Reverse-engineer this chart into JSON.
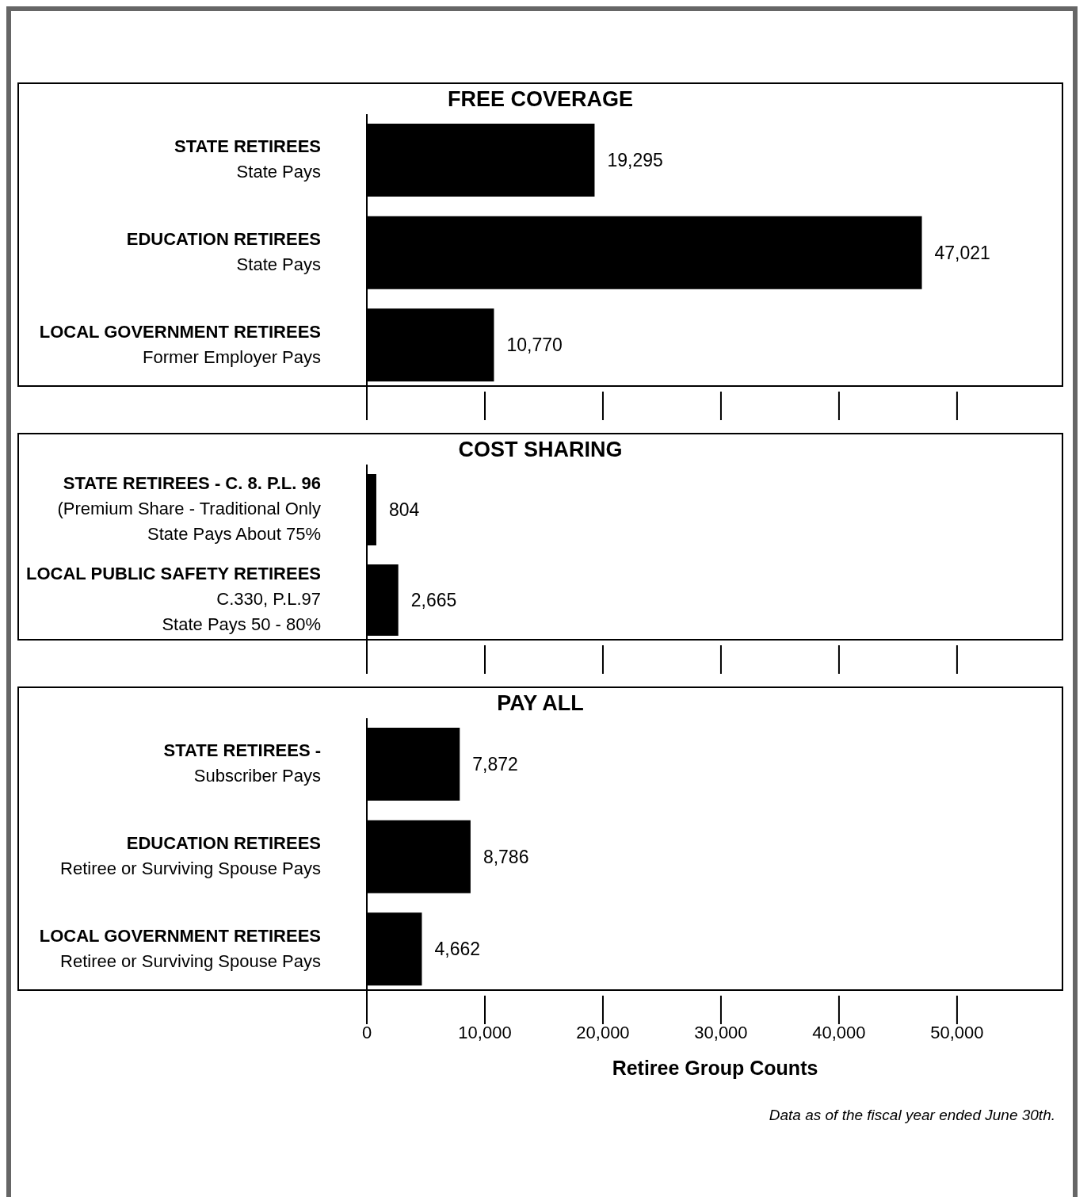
{
  "chart_data": [
    {
      "type": "bar",
      "orientation": "horizontal",
      "title": "FREE COVERAGE",
      "categories": [
        "STATE RETIREES\nState Pays",
        "EDUCATION RETIREES\nState Pays",
        "LOCAL GOVERNMENT RETIREES\nFormer Employer Pays"
      ],
      "values": [
        19295,
        47021,
        10770
      ],
      "value_labels": [
        "19,295",
        "47,021",
        "10,770"
      ],
      "color": "#000000",
      "xlim": [
        0,
        59000
      ],
      "xticks": [
        {
          "value": 0,
          "label": null
        },
        {
          "value": 10000,
          "label": null
        },
        {
          "value": 20000,
          "label": null
        },
        {
          "value": 30000,
          "label": null
        },
        {
          "value": 40000,
          "label": null
        },
        {
          "value": 50000,
          "label": null
        }
      ],
      "tick_labels": "y"
    },
    {
      "type": "bar",
      "orientation": "horizontal",
      "title": "COST SHARING",
      "categories": [
        "STATE RETIREES - C. 8. P.L. 96\n(Premium Share - Traditional Only\nState Pays About 75%",
        "LOCAL PUBLIC SAFETY RETIREES\nC.330, P.L.97\nState Pays 50 - 80%"
      ],
      "values": [
        804,
        2665
      ],
      "value_labels": [
        "804",
        "2,665"
      ],
      "color": "#000000",
      "xlim": [
        0,
        59000
      ],
      "xticks": [
        {
          "value": 0,
          "label": null
        },
        {
          "value": 10000,
          "label": null
        },
        {
          "value": 20000,
          "label": null
        },
        {
          "value": 30000,
          "label": null
        },
        {
          "value": 40000,
          "label": null
        },
        {
          "value": 50000,
          "label": null
        }
      ],
      "tick_labels": "y"
    },
    {
      "type": "bar",
      "orientation": "horizontal",
      "title": "PAY ALL",
      "categories": [
        "STATE RETIREES -\nSubscriber Pays",
        "EDUCATION RETIREES\nRetiree or Surviving Spouse Pays",
        "LOCAL GOVERNMENT RETIREES\nRetiree or Surviving Spouse Pays"
      ],
      "values": [
        7872,
        8786,
        4662
      ],
      "value_labels": [
        "7,872",
        "8,786",
        "4,662"
      ],
      "color": "#000000",
      "xlim": [
        0,
        59000
      ],
      "xticks": [
        {
          "value": 0,
          "label": "0"
        },
        {
          "value": 10000,
          "label": "10,000"
        },
        {
          "value": 20000,
          "label": "20,000"
        },
        {
          "value": 30000,
          "label": "30,000"
        },
        {
          "value": 40000,
          "label": "40,000"
        },
        {
          "value": 50000,
          "label": "50,000"
        }
      ],
      "xlabel": "Retiree Group Counts",
      "annotations": [
        "Data as of the fiscal year ended June 30th."
      ]
    }
  ]
}
